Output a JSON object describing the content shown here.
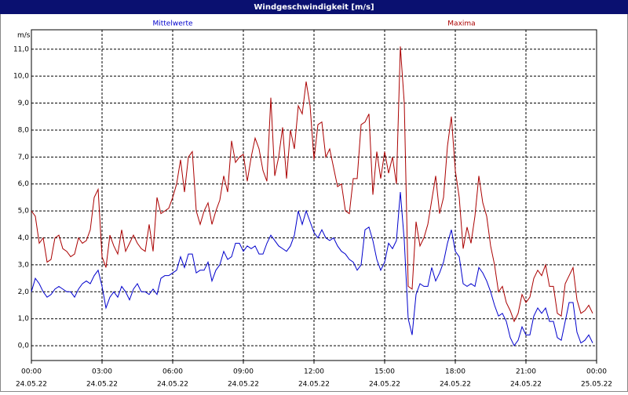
{
  "chart_data": {
    "type": "line",
    "title": "Windgeschwindigkeit [m/s]",
    "y_unit": "m/s",
    "xlim": [
      0,
      1440
    ],
    "ylim": [
      -0.55,
      11.72
    ],
    "grid": true,
    "xticks": [
      {
        "value": 0,
        "label": "00:00",
        "date": "24.05.22"
      },
      {
        "value": 180,
        "label": "03:00",
        "date": "24.05.22"
      },
      {
        "value": 360,
        "label": "06:00",
        "date": "24.05.22"
      },
      {
        "value": 540,
        "label": "09:00",
        "date": "24.05.22"
      },
      {
        "value": 720,
        "label": "12:00",
        "date": "24.05.22"
      },
      {
        "value": 900,
        "label": "15:00",
        "date": "24.05.22"
      },
      {
        "value": 1080,
        "label": "18:00",
        "date": "24.05.22"
      },
      {
        "value": 1260,
        "label": "21:00",
        "date": "24.05.22"
      },
      {
        "value": 1440,
        "label": "00:00",
        "date": "25.05.22"
      }
    ],
    "yticks": [
      {
        "value": 0,
        "label": "0,0"
      },
      {
        "value": 1,
        "label": "1,0"
      },
      {
        "value": 2,
        "label": "2,0"
      },
      {
        "value": 3,
        "label": "3,0"
      },
      {
        "value": 4,
        "label": "4,0"
      },
      {
        "value": 5,
        "label": "5,0"
      },
      {
        "value": 6,
        "label": "6,0"
      },
      {
        "value": 7,
        "label": "7,0"
      },
      {
        "value": 8,
        "label": "8,0"
      },
      {
        "value": 9,
        "label": "9,0"
      },
      {
        "value": 10,
        "label": "10,0"
      },
      {
        "value": 11,
        "label": "11,0"
      }
    ],
    "x": [
      0,
      10,
      20,
      30,
      40,
      50,
      60,
      70,
      80,
      90,
      100,
      110,
      120,
      130,
      140,
      150,
      160,
      170,
      180,
      190,
      200,
      210,
      220,
      230,
      240,
      250,
      260,
      270,
      280,
      290,
      300,
      310,
      320,
      330,
      340,
      350,
      360,
      370,
      380,
      390,
      400,
      410,
      420,
      430,
      440,
      450,
      460,
      470,
      480,
      490,
      500,
      510,
      520,
      530,
      540,
      550,
      560,
      570,
      580,
      590,
      600,
      610,
      620,
      630,
      640,
      650,
      660,
      670,
      680,
      690,
      700,
      710,
      720,
      730,
      740,
      750,
      760,
      770,
      780,
      790,
      800,
      810,
      820,
      830,
      840,
      850,
      860,
      870,
      880,
      890,
      900,
      910,
      920,
      930,
      940,
      950,
      960,
      970,
      980,
      990,
      1000,
      1010,
      1020,
      1030,
      1040,
      1050,
      1060,
      1070,
      1080,
      1090,
      1100,
      1110,
      1120,
      1130,
      1140,
      1150,
      1160,
      1170,
      1180,
      1190,
      1200,
      1210,
      1220,
      1230,
      1240,
      1250,
      1260,
      1270,
      1280,
      1290,
      1300,
      1310,
      1320,
      1330,
      1340,
      1350,
      1360,
      1370,
      1380,
      1390,
      1400,
      1410,
      1420,
      1430
    ],
    "series": [
      {
        "name": "Mittelwerte",
        "color": "#0000cc",
        "values": [
          2.0,
          2.5,
          2.3,
          2.0,
          1.8,
          1.9,
          2.1,
          2.2,
          2.1,
          2.0,
          2.0,
          1.8,
          2.1,
          2.3,
          2.4,
          2.3,
          2.6,
          2.8,
          2.2,
          1.4,
          1.8,
          2.0,
          1.8,
          2.2,
          2.0,
          1.7,
          2.1,
          2.3,
          2.0,
          2.0,
          1.9,
          2.1,
          1.9,
          2.5,
          2.6,
          2.6,
          2.7,
          2.8,
          3.3,
          2.9,
          3.4,
          3.4,
          2.7,
          2.8,
          2.8,
          3.1,
          2.4,
          2.8,
          3.0,
          3.5,
          3.2,
          3.3,
          3.8,
          3.8,
          3.5,
          3.7,
          3.6,
          3.7,
          3.4,
          3.4,
          3.8,
          4.1,
          3.9,
          3.7,
          3.6,
          3.5,
          3.7,
          4.1,
          5.0,
          4.5,
          5.0,
          4.6,
          4.2,
          4.0,
          4.3,
          4.0,
          3.9,
          4.0,
          3.7,
          3.5,
          3.4,
          3.2,
          3.1,
          2.8,
          3.0,
          4.3,
          4.4,
          3.9,
          3.2,
          2.8,
          3.1,
          3.8,
          3.6,
          3.9,
          5.7,
          3.9,
          1.0,
          0.4,
          1.9,
          2.3,
          2.2,
          2.2,
          2.9,
          2.4,
          2.7,
          3.1,
          3.8,
          4.3,
          3.5,
          3.3,
          2.3,
          2.2,
          2.3,
          2.2,
          2.9,
          2.7,
          2.4,
          2.0,
          1.5,
          1.1,
          1.2,
          0.9,
          0.3,
          0.0,
          0.2,
          0.7,
          0.4,
          0.4,
          1.1,
          1.4,
          1.2,
          1.4,
          0.9,
          0.9,
          0.3,
          0.2,
          0.9,
          1.6,
          1.6,
          0.5,
          0.1,
          0.2,
          0.4,
          0.1
        ]
      },
      {
        "name": "Maxima",
        "color": "#aa0000",
        "values": [
          5.0,
          4.8,
          3.8,
          4.0,
          3.1,
          3.2,
          4.0,
          4.1,
          3.6,
          3.5,
          3.3,
          3.4,
          4.0,
          3.8,
          3.9,
          4.3,
          5.5,
          5.8,
          3.3,
          2.9,
          4.1,
          3.7,
          3.4,
          4.3,
          3.5,
          3.8,
          4.1,
          3.8,
          3.6,
          3.5,
          4.5,
          3.5,
          5.5,
          4.9,
          5.0,
          5.1,
          5.5,
          6.0,
          6.9,
          5.7,
          7.0,
          7.2,
          5.0,
          4.5,
          5.0,
          5.3,
          4.5,
          5.0,
          5.4,
          6.3,
          5.7,
          7.6,
          6.8,
          7.0,
          7.1,
          6.1,
          7.0,
          7.7,
          7.3,
          6.5,
          6.1,
          9.2,
          6.3,
          7.0,
          8.1,
          6.2,
          8.0,
          7.3,
          8.9,
          8.6,
          9.8,
          8.9,
          6.9,
          8.2,
          8.3,
          7.0,
          7.3,
          6.6,
          5.9,
          6.0,
          5.0,
          4.9,
          6.2,
          6.2,
          8.2,
          8.3,
          8.6,
          5.6,
          7.2,
          6.2,
          7.2,
          6.4,
          7.0,
          6.0,
          11.1,
          9.0,
          2.2,
          2.1,
          4.6,
          3.7,
          4.0,
          4.5,
          5.4,
          6.3,
          4.9,
          5.5,
          7.4,
          8.5,
          6.5,
          5.5,
          3.6,
          4.4,
          3.8,
          4.8,
          6.3,
          5.3,
          4.8,
          3.7,
          3.0,
          2.0,
          2.2,
          1.6,
          1.3,
          0.9,
          1.2,
          1.9,
          1.6,
          1.8,
          2.5,
          2.8,
          2.6,
          3.0,
          2.2,
          2.2,
          1.2,
          1.1,
          2.3,
          2.6,
          2.9,
          1.7,
          1.2,
          1.3,
          1.5,
          1.2
        ]
      }
    ]
  }
}
